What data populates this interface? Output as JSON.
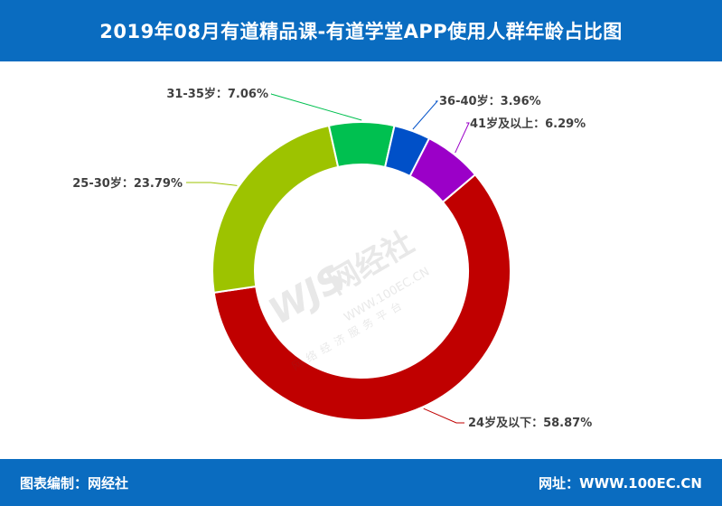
{
  "header": {
    "title": "2019年08月有道精品课-有道学堂APP使用人群年龄占比图"
  },
  "footer": {
    "left_text": "图表编制：网经社",
    "right_text": "网址：WWW.100EC.CN"
  },
  "watermark": {
    "logo": "WJS",
    "name": "网经社",
    "url": "WWW.100EC.CN",
    "slogan": "网络经济服务平台"
  },
  "chart_data": {
    "type": "pie",
    "donut": true,
    "title": "",
    "slices": [
      {
        "label": "24岁及以下",
        "value": 58.87,
        "display": "24岁及以下：58.87%",
        "color": "#c00000"
      },
      {
        "label": "25-30岁",
        "value": 23.79,
        "display": "25-30岁：23.79%",
        "color": "#9dc300"
      },
      {
        "label": "31-35岁",
        "value": 7.06,
        "display": "31-35岁：7.06%",
        "color": "#00c050"
      },
      {
        "label": "36-40岁",
        "value": 3.96,
        "display": "36-40岁：3.96%",
        "color": "#0050c8"
      },
      {
        "label": "41岁及以上",
        "value": 6.29,
        "display": "41岁及以上：6.29%",
        "color": "#9b00c8"
      }
    ],
    "legend": "none"
  }
}
